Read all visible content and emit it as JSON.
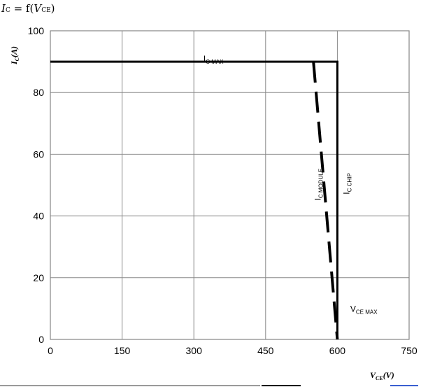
{
  "title": {
    "symbol": "I",
    "symbol_sub": "C",
    "equals": " = f(",
    "arg": "V",
    "arg_sub": "CE",
    "close": ")"
  },
  "chart_data": {
    "type": "line",
    "xlim": [
      0,
      750
    ],
    "ylim": [
      0,
      100
    ],
    "x_ticks": [
      0,
      150,
      300,
      450,
      600,
      750
    ],
    "y_ticks": [
      0,
      20,
      40,
      60,
      80,
      100
    ],
    "grid": true,
    "xlabel": {
      "main": "V",
      "sub": "CE",
      "unit": "(V)"
    },
    "ylabel": {
      "main": "I",
      "sub": "C",
      "unit": "(A)"
    },
    "series": [
      {
        "name": "I_C CHIP",
        "style": "solid",
        "x": [
          0,
          600,
          600
        ],
        "y": [
          90,
          90,
          0
        ]
      },
      {
        "name": "I_C MODULE",
        "style": "dashed",
        "x": [
          550,
          600
        ],
        "y": [
          90,
          0
        ]
      }
    ],
    "annotations": [
      {
        "text_main": "I",
        "text_sub": "C MAX",
        "x": 320,
        "y": 90,
        "rotate": false
      },
      {
        "text_main": "I",
        "text_sub": "C  MODULE",
        "x": 565,
        "y": 45,
        "rotate": true
      },
      {
        "text_main": "I",
        "text_sub": "C  CHIP",
        "x": 625,
        "y": 47,
        "rotate": true
      },
      {
        "text_main": "V",
        "text_sub": "CE MAX",
        "x": 627,
        "y": 9,
        "rotate": false
      }
    ]
  },
  "colors": {
    "line": "#000000",
    "grid": "#888888",
    "axis": "#868686",
    "accent": "#3a5fd0"
  }
}
